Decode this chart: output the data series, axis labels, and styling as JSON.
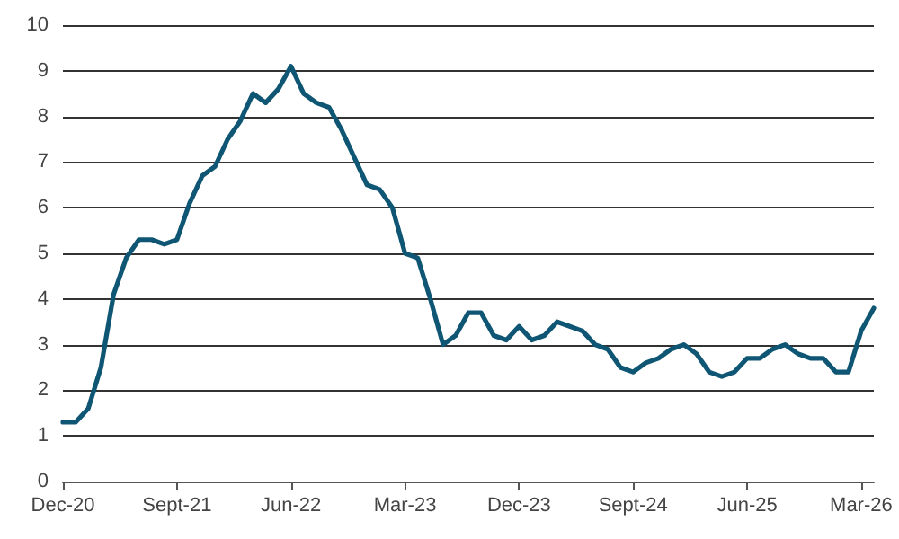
{
  "chart_data": {
    "type": "line",
    "categories": [
      "Dec-20",
      null,
      null,
      null,
      null,
      null,
      null,
      null,
      null,
      "Sept-21",
      null,
      null,
      null,
      null,
      null,
      null,
      null,
      null,
      "Jun-22",
      null,
      null,
      null,
      null,
      null,
      null,
      null,
      null,
      "Mar-23",
      null,
      null,
      null,
      null,
      null,
      null,
      null,
      null,
      "Dec-23",
      null,
      null,
      null,
      null,
      null,
      null,
      null,
      null,
      "Sept-24",
      null,
      null,
      null,
      null,
      null,
      null,
      null,
      null,
      "Jun-25",
      null,
      null,
      null,
      null,
      null,
      null,
      null,
      null,
      "Mar-26",
      null
    ],
    "series": [
      {
        "color": "#0f5674",
        "values": [
          1.3,
          1.3,
          1.6,
          2.5,
          4.1,
          4.9,
          5.3,
          5.3,
          5.2,
          5.3,
          6.1,
          6.7,
          6.9,
          7.5,
          7.9,
          8.5,
          8.3,
          8.6,
          9.1,
          8.5,
          8.3,
          8.2,
          7.7,
          7.1,
          6.5,
          6.4,
          6.0,
          5.0,
          4.9,
          4.0,
          3.0,
          3.2,
          3.7,
          3.7,
          3.2,
          3.1,
          3.4,
          3.1,
          3.2,
          3.5,
          3.4,
          3.3,
          3.0,
          2.9,
          2.5,
          2.4,
          2.6,
          2.7,
          2.9,
          3.0,
          2.8,
          2.4,
          2.3,
          2.4,
          2.7,
          2.7,
          2.9,
          3.0,
          2.8,
          2.7,
          2.7,
          2.4,
          2.4,
          3.3,
          3.8
        ]
      }
    ],
    "ylim": [
      0,
      10
    ],
    "yticks": [
      0,
      1,
      2,
      3,
      4,
      5,
      6,
      7,
      8,
      9,
      10
    ],
    "grid": "y",
    "marker": "none",
    "line_style": "solid"
  }
}
